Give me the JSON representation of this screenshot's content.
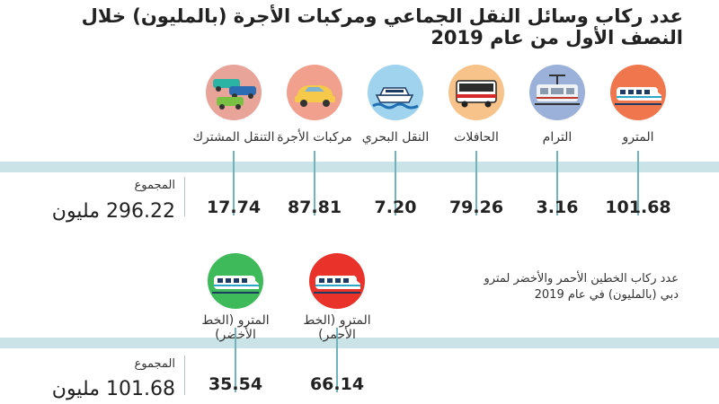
{
  "title": "عدد ركاب وسائل النقل الجماعي ومركبات الأجرة (بالمليون) خلال النصف الأول من عام 2019",
  "chart_data": [
    {
      "type": "table",
      "categories": [
        "المترو",
        "الترام",
        "الحافلات",
        "النقل البحري",
        "مركبات الأجرة",
        "التنقل المشترك"
      ],
      "value_labels": [
        "101.68",
        "3.16",
        "79.26",
        "7.20",
        "87.81",
        "17.74"
      ],
      "values": [
        101.68,
        3.16,
        79.26,
        7.2,
        87.81,
        17.74
      ],
      "icons": [
        "metro-icon",
        "tram-icon",
        "bus-icon",
        "boat-icon",
        "taxi-icon",
        "shared-cars-icon"
      ],
      "icon_colors": [
        "#f0764e",
        "#9cb1d9",
        "#f8c38a",
        "#9fd3ee",
        "#f2a08e",
        "#e9a49a"
      ],
      "total_label": "المجموع",
      "total_value": "296.22 مليون"
    },
    {
      "type": "table",
      "title": "عدد ركاب الخطين الأحمر والأخضر لمترو دبي (بالمليون) في عام 2019",
      "categories": [
        "المترو (الخط الأحمر)",
        "المترو (الخط الأخضر)"
      ],
      "value_labels": [
        "66.14",
        "35.54"
      ],
      "values": [
        66.14,
        35.54
      ],
      "icons": [
        "red-line-metro-icon",
        "green-line-metro-icon"
      ],
      "icon_colors": [
        "#e8322a",
        "#3fba5a"
      ],
      "total_label": "المجموع",
      "total_value": "101.68 مليون"
    }
  ]
}
